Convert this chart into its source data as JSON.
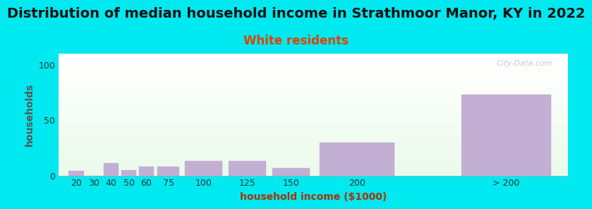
{
  "title": "Distribution of median household income in Strathmoor Manor, KY in 2022",
  "subtitle": "White residents",
  "xlabel": "household income ($1000)",
  "ylabel": "households",
  "categories": [
    "20",
    "30",
    "40",
    "50",
    "60",
    "75",
    "100",
    "125",
    "150",
    "200",
    "> 200"
  ],
  "values": [
    4,
    0,
    11,
    5,
    8,
    8,
    13,
    13,
    7,
    30,
    73
  ],
  "bar_color": "#c3aed4",
  "background_outer": "#00e8f0",
  "ylim": [
    0,
    110
  ],
  "yticks": [
    0,
    50,
    100
  ],
  "title_fontsize": 14,
  "subtitle_fontsize": 12,
  "subtitle_color": "#dd4400",
  "axis_label_fontsize": 10,
  "tick_fontsize": 9,
  "watermark": "City-Data.com",
  "ylabel_color": "#555555",
  "xlabel_color": "#aa3300"
}
